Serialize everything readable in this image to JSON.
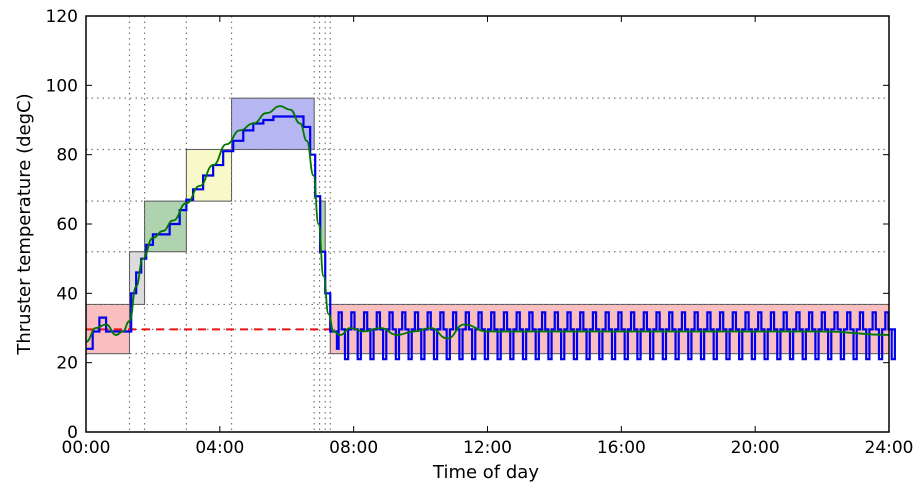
{
  "chart_data": {
    "type": "line",
    "title": "",
    "xlabel": "Time of day",
    "ylabel": "Thruster temperature (degC)",
    "xlim_hours": [
      0,
      24
    ],
    "ylim": [
      0,
      120
    ],
    "x_ticks": [
      {
        "label": "00:00",
        "hours": 0
      },
      {
        "label": "04:00",
        "hours": 4
      },
      {
        "label": "08:00",
        "hours": 8
      },
      {
        "label": "12:00",
        "hours": 12
      },
      {
        "label": "16:00",
        "hours": 16
      },
      {
        "label": "20:00",
        "hours": 20
      },
      {
        "label": "24:00",
        "hours": 24
      }
    ],
    "y_ticks": [
      0,
      20,
      40,
      60,
      80,
      100,
      120
    ],
    "grid": {
      "horizontal_dotted_y": [
        22.6,
        29.6,
        36.8,
        52,
        66.6,
        81.5,
        96.3
      ]
    },
    "vertical_dotted_x_hours": [
      1.3,
      1.75,
      3.0,
      4.35,
      6.82,
      6.98,
      7.15,
      7.3
    ],
    "setpoint_line": {
      "y": 29.6,
      "x_range_hours": [
        0,
        7.3
      ],
      "color": "#ee1111",
      "style": "dashed"
    },
    "bands": [
      {
        "x": [
          0,
          1.3
        ],
        "y": [
          22.6,
          36.8
        ],
        "color": "#f4888c"
      },
      {
        "x": [
          1.3,
          1.75
        ],
        "y": [
          36.8,
          52
        ],
        "color": "#c0c0c0"
      },
      {
        "x": [
          1.75,
          3.0
        ],
        "y": [
          52,
          66.6
        ],
        "color": "#6cae6c"
      },
      {
        "x": [
          3.0,
          4.35
        ],
        "y": [
          66.6,
          81.5
        ],
        "color": "#f2f29a"
      },
      {
        "x": [
          4.35,
          6.82
        ],
        "y": [
          81.5,
          96.3
        ],
        "color": "#7a7ae8"
      },
      {
        "x": [
          6.98,
          7.15
        ],
        "y": [
          52,
          66.6
        ],
        "color": "#6cae6c"
      },
      {
        "x": [
          7.3,
          24
        ],
        "y": [
          22.6,
          36.8
        ],
        "color": "#f4888c"
      }
    ],
    "series": [
      {
        "color": "#0000ee",
        "style": "step",
        "x_hours": [
          0,
          0.2,
          0.4,
          0.6,
          0.8,
          1.0,
          1.2,
          1.35,
          1.5,
          1.65,
          1.8,
          2.0,
          2.2,
          2.5,
          2.8,
          3.0,
          3.2,
          3.5,
          3.8,
          4.1,
          4.4,
          4.7,
          5.0,
          5.3,
          5.6,
          5.9,
          6.2,
          6.5,
          6.7,
          6.85,
          7.0,
          7.15,
          7.3,
          7.5
        ],
        "y": [
          24,
          29,
          33,
          29,
          29,
          29,
          29,
          40,
          46,
          50,
          54,
          57,
          57,
          60,
          64,
          67,
          70,
          74,
          77,
          81,
          84,
          87,
          89,
          90,
          91,
          91,
          91,
          88,
          80,
          68,
          52,
          40,
          29,
          24
        ],
        "oscillation": {
          "x_range_hours": [
            7.3,
            24
          ],
          "period_hours": 0.38,
          "high": 34.5,
          "low": 21.0,
          "mid": 29.6
        }
      },
      {
        "color": "#007700",
        "style": "smooth",
        "x_hours": [
          0,
          0.3,
          0.6,
          0.9,
          1.1,
          1.3,
          1.5,
          1.7,
          2.0,
          2.3,
          2.6,
          3.0,
          3.4,
          3.8,
          4.2,
          4.6,
          5.0,
          5.4,
          5.8,
          6.1,
          6.4,
          6.6,
          6.8,
          6.95,
          7.1,
          7.25,
          7.4,
          7.6,
          7.9,
          8.3,
          8.8,
          9.3,
          9.8,
          10.3,
          10.8,
          11.3,
          12,
          14,
          16,
          18,
          20,
          22,
          24
        ],
        "y": [
          26,
          30,
          31,
          28,
          29,
          32,
          42,
          50,
          56,
          58,
          61,
          66,
          71,
          77,
          83,
          87,
          89,
          92,
          94,
          93,
          89,
          84,
          74,
          60,
          45,
          34,
          29,
          28,
          30,
          29,
          30,
          28,
          29,
          30,
          27,
          31,
          29,
          29,
          29,
          29,
          29,
          29,
          28
        ]
      }
    ]
  }
}
